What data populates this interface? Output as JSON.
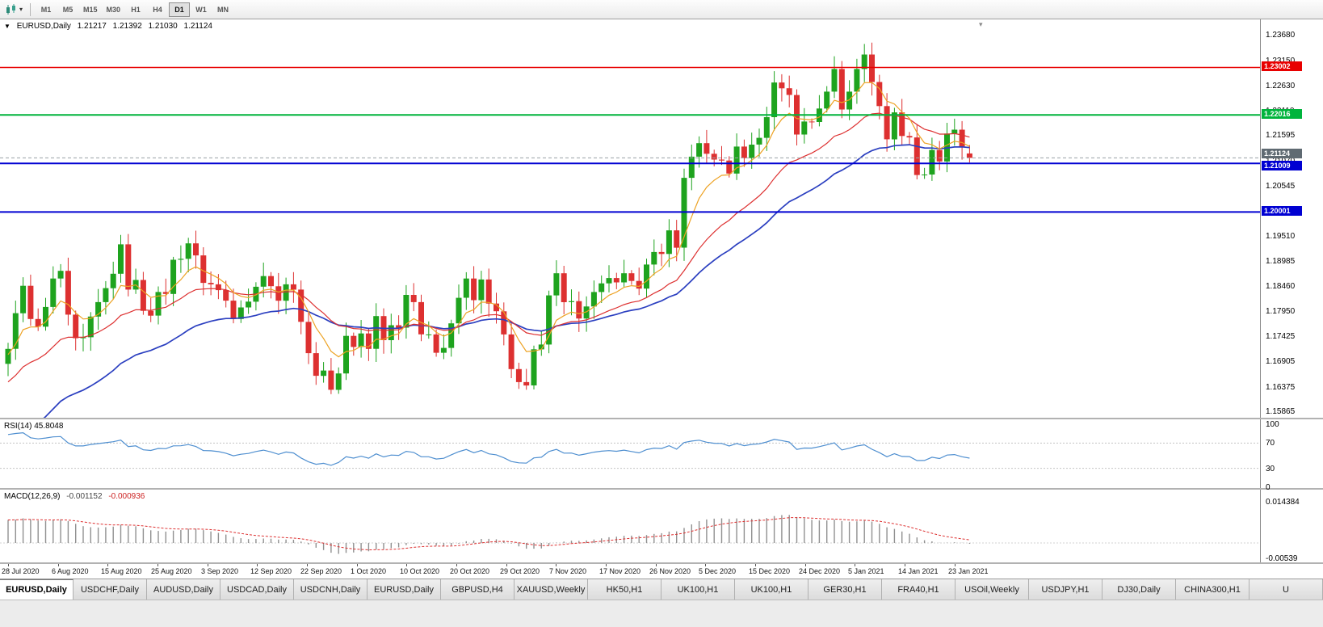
{
  "icons": {
    "dropdown": "▾",
    "one_click": "▼",
    "shift_marker": "▾",
    "chart_type": "candles-icon"
  },
  "toolbar": {
    "timeframes": [
      "M1",
      "M5",
      "M15",
      "M30",
      "H1",
      "H4",
      "D1",
      "W1",
      "MN"
    ],
    "active_timeframe": "D1"
  },
  "main_chart": {
    "legend": {
      "symbol": "EURUSD,Daily",
      "open": "1.21217",
      "high": "1.21392",
      "low": "1.21030",
      "close": "1.21124"
    },
    "price_top": 1.24,
    "price_bottom": 1.1573,
    "axis_labels": [
      "1.23680",
      "1.23150",
      "1.22630",
      "1.22110",
      "1.21595",
      "1.21070",
      "1.20545",
      "1.20025",
      "1.19510",
      "1.18985",
      "1.18460",
      "1.17950",
      "1.17425",
      "1.16905",
      "1.16375",
      "1.15865"
    ],
    "hlines": [
      {
        "price": 1.23002,
        "label": "1.23002",
        "color": "#e80000",
        "width": 1.6,
        "nudge": 0
      },
      {
        "price": 1.22016,
        "label": "1.22016",
        "color": "#00b43c",
        "width": 2,
        "nudge": 0
      },
      {
        "price": 1.21009,
        "label": "1.21009",
        "color": "#0000d2",
        "width": 2,
        "nudge": 4
      },
      {
        "price": 1.20001,
        "label": "1.20001",
        "color": "#0000d2",
        "width": 2,
        "nudge": 0
      }
    ],
    "current_price": {
      "price": 1.21124,
      "label": "1.21124",
      "color": "#5f6a72",
      "nudge": -4
    },
    "colors": {
      "up": "#1ea31e",
      "down": "#dd3030",
      "ma_fast": "#eda223",
      "ma_mid": "#dd3030",
      "ma_slow": "#2b3fc0"
    }
  },
  "chart_data": {
    "type": "candlestick",
    "symbol": "EURUSD",
    "period": "Daily",
    "first_open": 1.1685,
    "closes": [
      1.1716,
      1.179,
      1.1847,
      1.1778,
      1.1762,
      1.1803,
      1.1862,
      1.1878,
      1.1787,
      1.1738,
      1.174,
      1.1783,
      1.1813,
      1.1842,
      1.1872,
      1.1933,
      1.1839,
      1.1859,
      1.1795,
      1.1785,
      1.1834,
      1.183,
      1.1901,
      1.1903,
      1.1935,
      1.191,
      1.1853,
      1.185,
      1.1838,
      1.1816,
      1.1778,
      1.1802,
      1.1814,
      1.1845,
      1.1867,
      1.1846,
      1.1816,
      1.185,
      1.1839,
      1.1772,
      1.1707,
      1.166,
      1.1671,
      1.1631,
      1.1665,
      1.1743,
      1.172,
      1.1748,
      1.1716,
      1.1784,
      1.1734,
      1.1765,
      1.176,
      1.1828,
      1.1813,
      1.1746,
      1.1746,
      1.1708,
      1.1718,
      1.1769,
      1.1822,
      1.1862,
      1.1817,
      1.186,
      1.181,
      1.1794,
      1.1746,
      1.1674,
      1.1647,
      1.164,
      1.1715,
      1.1725,
      1.1827,
      1.1873,
      1.1813,
      1.1815,
      1.1779,
      1.1804,
      1.1834,
      1.1852,
      1.1863,
      1.1854,
      1.1873,
      1.1857,
      1.1841,
      1.1891,
      1.1917,
      1.1913,
      1.1962,
      1.1926,
      1.2071,
      1.2115,
      1.2143,
      1.2121,
      1.2109,
      1.2107,
      1.208,
      1.2136,
      1.2112,
      1.214,
      1.2154,
      1.2197,
      1.2269,
      1.2257,
      1.2243,
      1.2161,
      1.2188,
      1.2187,
      1.2215,
      1.225,
      1.2297,
      1.2213,
      1.225,
      1.2297,
      1.2327,
      1.227,
      1.222,
      1.2151,
      1.2207,
      1.2158,
      1.2155,
      1.2077,
      1.2078,
      1.2129,
      1.2105,
      1.2163,
      1.2171,
      1.2136,
      1.21124
    ],
    "spike_high": {
      "index": 114,
      "value": 1.2349
    },
    "last_candle": {
      "open": 1.21217,
      "high": 1.21392,
      "low": 1.2103,
      "close": 1.21124
    },
    "x_labels": [
      "28 Jul 2020",
      "6 Aug 2020",
      "15 Aug 2020",
      "25 Aug 2020",
      "3 Sep 2020",
      "12 Sep 2020",
      "22 Sep 2020",
      "1 Oct 2020",
      "10 Oct 2020",
      "20 Oct 2020",
      "29 Oct 2020",
      "7 Nov 2020",
      "17 Nov 2020",
      "26 Nov 2020",
      "5 Dec 2020",
      "15 Dec 2020",
      "24 Dec 2020",
      "5 Jan 2021",
      "14 Jan 2021",
      "23 Jan 2021"
    ]
  },
  "rsi_panel": {
    "label": "RSI(14) 45.8048",
    "axis_labels": [
      "100",
      "70",
      "30",
      "0"
    ],
    "levels": [
      70,
      30
    ],
    "line_color": "#4f8fd0"
  },
  "macd_panel": {
    "label": "MACD(12,26,9)",
    "value": "-0.001152",
    "signal_value": "-0.000936",
    "axis_labels": [
      "0.014384",
      "-0.00539"
    ],
    "histogram_color": "#909090",
    "signal_color": "#dd3030"
  },
  "tabs": [
    {
      "label": "EURUSD,Daily",
      "active": true
    },
    {
      "label": "USDCHF,Daily",
      "active": false
    },
    {
      "label": "AUDUSD,Daily",
      "active": false
    },
    {
      "label": "USDCAD,Daily",
      "active": false
    },
    {
      "label": "USDCNH,Daily",
      "active": false
    },
    {
      "label": "EURUSD,Daily",
      "active": false
    },
    {
      "label": "GBPUSD,H4",
      "active": false
    },
    {
      "label": "XAUUSD,Weekly",
      "active": false
    },
    {
      "label": "HK50,H1",
      "active": false
    },
    {
      "label": "UK100,H1",
      "active": false
    },
    {
      "label": "UK100,H1",
      "active": false
    },
    {
      "label": "GER30,H1",
      "active": false
    },
    {
      "label": "FRA40,H1",
      "active": false
    },
    {
      "label": "USOil,Weekly",
      "active": false
    },
    {
      "label": "USDJPY,H1",
      "active": false
    },
    {
      "label": "DJ30,Daily",
      "active": false
    },
    {
      "label": "CHINA300,H1",
      "active": false
    },
    {
      "label": "U",
      "active": false
    }
  ]
}
